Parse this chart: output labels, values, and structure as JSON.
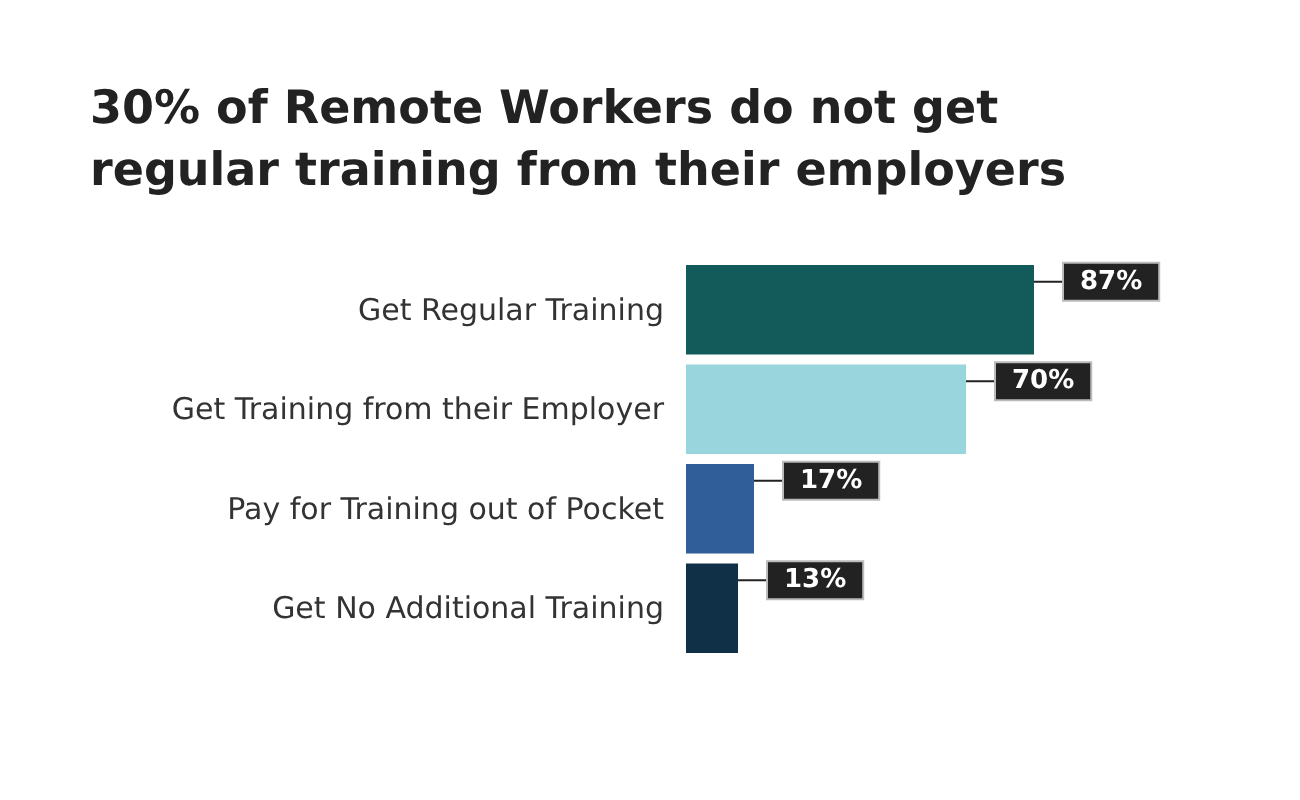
{
  "chart_data": {
    "type": "bar",
    "orientation": "horizontal",
    "title": "30% of Remote Workers do not get regular training from their employers",
    "categories": [
      "Get Regular Training",
      "Get Training from their Employer",
      "Pay for Training out of Pocket",
      "Get No Additional Training"
    ],
    "values": [
      87,
      70,
      17,
      13
    ],
    "colors": [
      "#135b5a",
      "#99d5dd",
      "#2f5e99",
      "#0f3047"
    ],
    "value_labels": [
      "87%",
      "70%",
      "17%",
      "13%"
    ],
    "tick_labels": "y"
  }
}
